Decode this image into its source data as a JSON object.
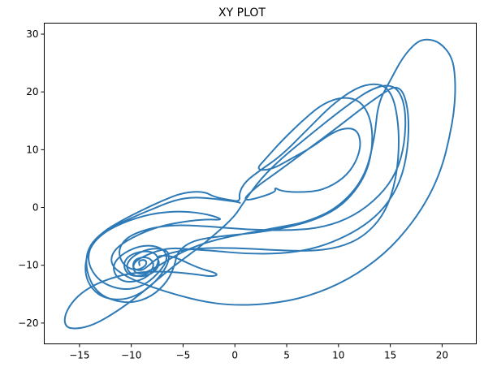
{
  "chart_data": {
    "type": "line",
    "title": "XY PLOT",
    "xlabel": "",
    "ylabel": "",
    "xlim": [
      -18.4,
      23.3
    ],
    "ylim": [
      -23.6,
      31.9
    ],
    "xticks": [
      -15,
      -10,
      -5,
      0,
      5,
      10,
      15,
      20
    ],
    "yticks": [
      -20,
      -10,
      0,
      10,
      20,
      30
    ],
    "grid": false,
    "color": "#2e7ab6",
    "series": [
      {
        "points": [
          [
            0.5,
            0.8
          ],
          [
            0.2,
            1.0
          ],
          [
            -0.8,
            1.2
          ],
          [
            -2.0,
            1.5
          ],
          [
            -4.0,
            1.8
          ],
          [
            -5.8,
            1.3
          ],
          [
            -8.0,
            -0.3
          ],
          [
            -10.0,
            -1.8
          ],
          [
            -12.0,
            -3.5
          ],
          [
            -13.5,
            -5.5
          ],
          [
            -14.2,
            -8.0
          ],
          [
            -14.0,
            -10.5
          ],
          [
            -13.0,
            -12.8
          ],
          [
            -11.5,
            -14.0
          ],
          [
            -10.0,
            -14.2
          ],
          [
            -8.5,
            -13.2
          ],
          [
            -7.2,
            -11.0
          ],
          [
            -6.5,
            -9.0
          ],
          [
            -6.8,
            -7.3
          ],
          [
            -8.0,
            -6.5
          ],
          [
            -9.5,
            -6.8
          ],
          [
            -11.0,
            -8.2
          ],
          [
            -11.8,
            -10.0
          ],
          [
            -11.5,
            -12.0
          ],
          [
            -10.5,
            -13.0
          ],
          [
            -9.0,
            -12.6
          ],
          [
            -7.8,
            -11.0
          ],
          [
            -7.3,
            -9.2
          ],
          [
            -7.7,
            -7.8
          ],
          [
            -8.8,
            -7.5
          ],
          [
            -10.2,
            -8.2
          ],
          [
            -10.8,
            -9.8
          ],
          [
            -10.4,
            -11.6
          ],
          [
            -9.2,
            -12.0
          ],
          [
            -8.0,
            -11.0
          ],
          [
            -7.8,
            -9.5
          ],
          [
            -8.5,
            -8.5
          ],
          [
            -9.7,
            -8.9
          ],
          [
            -9.9,
            -10.6
          ],
          [
            -9.0,
            -11.0
          ],
          [
            -8.3,
            -10.0
          ],
          [
            -7.5,
            -8.8
          ],
          [
            -6.5,
            -8.0
          ],
          [
            -5.0,
            -7.4
          ],
          [
            -3.0,
            -7.0
          ],
          [
            0.0,
            -7.0
          ],
          [
            3.0,
            -7.3
          ],
          [
            7.0,
            -7.6
          ],
          [
            10.0,
            -7.0
          ],
          [
            12.5,
            -5.0
          ],
          [
            14.5,
            -1.0
          ],
          [
            15.6,
            5.0
          ],
          [
            15.9,
            12.0
          ],
          [
            15.5,
            18.0
          ],
          [
            14.7,
            20.8
          ],
          [
            13.5,
            21.5
          ],
          [
            11.8,
            20.8
          ],
          [
            9.5,
            18.0
          ],
          [
            7.0,
            13.5
          ],
          [
            4.5,
            9.0
          ],
          [
            2.5,
            6.5
          ],
          [
            1.0,
            4.5
          ],
          [
            0.4,
            2.5
          ],
          [
            0.5,
            1.0
          ],
          [
            -0.5,
            1.3
          ],
          [
            -2.0,
            1.8
          ],
          [
            -3.0,
            2.8
          ],
          [
            -5.0,
            2.6
          ],
          [
            -7.0,
            1.2
          ],
          [
            -9.0,
            -0.5
          ],
          [
            -11.0,
            -2.3
          ],
          [
            -12.8,
            -4.3
          ],
          [
            -14.0,
            -6.5
          ],
          [
            -14.4,
            -9.0
          ],
          [
            -14.2,
            -11.8
          ],
          [
            -13.4,
            -14.5
          ],
          [
            -12.0,
            -16.0
          ],
          [
            -10.0,
            -16.6
          ],
          [
            -8.0,
            -15.4
          ],
          [
            -6.5,
            -12.8
          ],
          [
            -5.8,
            -10.0
          ],
          [
            -5.6,
            -8.0
          ],
          [
            -4.8,
            -6.5
          ],
          [
            -3.5,
            -5.5
          ],
          [
            -1.0,
            -4.9
          ],
          [
            2.0,
            -4.4
          ],
          [
            5.0,
            -3.5
          ],
          [
            8.0,
            -2.0
          ],
          [
            10.5,
            0.5
          ],
          [
            12.5,
            5.0
          ],
          [
            13.3,
            10.0
          ],
          [
            13.2,
            15.0
          ],
          [
            12.2,
            18.4
          ],
          [
            10.5,
            19.2
          ],
          [
            8.5,
            18.0
          ],
          [
            6.5,
            15.0
          ],
          [
            4.5,
            11.5
          ],
          [
            3.0,
            8.5
          ],
          [
            2.0,
            6.5
          ],
          [
            3.5,
            6.5
          ],
          [
            5.5,
            8.5
          ],
          [
            7.5,
            10.5
          ],
          [
            9.0,
            12.5
          ],
          [
            10.5,
            13.8
          ],
          [
            11.8,
            13.5
          ],
          [
            12.2,
            11.0
          ],
          [
            11.7,
            7.8
          ],
          [
            10.5,
            5.0
          ],
          [
            8.5,
            3.0
          ],
          [
            6.5,
            2.6
          ],
          [
            4.5,
            2.8
          ],
          [
            3.8,
            3.5
          ],
          [
            4.0,
            2.6
          ],
          [
            0.5,
            0.8
          ],
          [
            2.0,
            3.5
          ],
          [
            4.0,
            6.0
          ],
          [
            7.0,
            10.0
          ],
          [
            10.0,
            14.0
          ],
          [
            12.5,
            17.5
          ],
          [
            14.5,
            20.0
          ],
          [
            15.5,
            21.0
          ],
          [
            16.3,
            20.0
          ],
          [
            16.8,
            16.0
          ],
          [
            16.7,
            10.0
          ],
          [
            16.0,
            4.5
          ],
          [
            14.5,
            0.0
          ],
          [
            12.5,
            -3.2
          ],
          [
            10.0,
            -5.6
          ],
          [
            7.5,
            -7.2
          ],
          [
            4.5,
            -8.0
          ],
          [
            1.0,
            -8.0
          ],
          [
            -2.0,
            -7.5
          ],
          [
            -4.5,
            -7.2
          ],
          [
            -6.0,
            -7.0
          ],
          [
            -7.3,
            -7.4
          ],
          [
            -8.8,
            -8.4
          ],
          [
            -9.8,
            -9.6
          ],
          [
            -9.8,
            -11.0
          ],
          [
            -9.2,
            -11.6
          ],
          [
            -8.0,
            -10.8
          ],
          [
            -5.0,
            -7.5
          ],
          [
            -2.0,
            -5.6
          ],
          [
            1.0,
            -4.5
          ],
          [
            4.0,
            -3.5
          ],
          [
            7.0,
            -2.5
          ],
          [
            10.0,
            0.0
          ],
          [
            12.5,
            5.0
          ],
          [
            13.5,
            12.0
          ],
          [
            13.8,
            18.0
          ],
          [
            15.0,
            22.0
          ],
          [
            16.2,
            26.0
          ],
          [
            17.5,
            28.6
          ],
          [
            18.5,
            29.2
          ],
          [
            19.8,
            28.6
          ],
          [
            21.0,
            26.0
          ],
          [
            21.3,
            22.0
          ],
          [
            21.2,
            17.0
          ],
          [
            20.7,
            12.0
          ],
          [
            20.0,
            7.0
          ],
          [
            18.8,
            2.0
          ],
          [
            17.0,
            -3.0
          ],
          [
            14.5,
            -8.0
          ],
          [
            11.0,
            -12.5
          ],
          [
            7.0,
            -15.5
          ],
          [
            3.0,
            -16.8
          ],
          [
            -0.5,
            -16.9
          ],
          [
            -3.0,
            -16.3
          ],
          [
            -5.5,
            -15.2
          ],
          [
            -8.0,
            -13.8
          ],
          [
            -10.5,
            -12.0
          ],
          [
            -12.0,
            -10.0
          ],
          [
            -11.8,
            -7.5
          ],
          [
            -10.0,
            -5.2
          ],
          [
            -7.0,
            -3.0
          ],
          [
            -3.0,
            -2.0
          ],
          [
            -1.0,
            -2.2
          ],
          [
            -2.5,
            -1.2
          ],
          [
            -5.0,
            -0.6
          ],
          [
            -8.0,
            -1.0
          ],
          [
            -11.0,
            -2.7
          ],
          [
            -13.2,
            -5.0
          ],
          [
            -14.3,
            -8.0
          ],
          [
            -14.5,
            -11.5
          ],
          [
            -13.8,
            -14.2
          ],
          [
            -12.5,
            -15.8
          ],
          [
            -10.5,
            -16.0
          ],
          [
            -8.5,
            -14.3
          ],
          [
            -7.0,
            -11.5
          ],
          [
            -6.3,
            -9.0
          ],
          [
            -6.5,
            -7.3
          ],
          [
            -8.2,
            -7.0
          ],
          [
            -10.0,
            -8.5
          ],
          [
            -10.6,
            -10.5
          ],
          [
            -9.6,
            -12.1
          ],
          [
            -8.0,
            -11.6
          ],
          [
            -7.2,
            -9.8
          ],
          [
            -7.6,
            -8.4
          ],
          [
            -6.5,
            -8.3
          ],
          [
            -5.5,
            -8.8
          ],
          [
            -3.5,
            -10.5
          ],
          [
            -1.5,
            -11.5
          ],
          [
            -2.2,
            -12.0
          ],
          [
            -4.0,
            -11.5
          ],
          [
            -7.0,
            -11.0
          ],
          [
            -10.0,
            -11.3
          ],
          [
            -12.5,
            -12.5
          ],
          [
            -14.5,
            -14.3
          ],
          [
            -15.8,
            -16.5
          ],
          [
            -16.5,
            -19.0
          ],
          [
            -16.3,
            -20.8
          ],
          [
            -15.2,
            -21.0
          ],
          [
            -13.8,
            -20.4
          ],
          [
            -12.3,
            -19.0
          ],
          [
            -10.6,
            -17.0
          ],
          [
            -9.0,
            -14.8
          ],
          [
            -7.5,
            -12.5
          ],
          [
            -5.8,
            -10.0
          ],
          [
            -3.8,
            -7.4
          ],
          [
            -1.8,
            -4.5
          ],
          [
            0.0,
            -1.5
          ],
          [
            0.8,
            0.8
          ],
          [
            2.5,
            5.0
          ],
          [
            4.5,
            8.5
          ],
          [
            7.0,
            12.2
          ],
          [
            9.5,
            15.8
          ],
          [
            11.5,
            18.5
          ],
          [
            13.0,
            20.3
          ],
          [
            14.6,
            21.3
          ],
          [
            15.8,
            20.5
          ],
          [
            16.5,
            17.0
          ],
          [
            16.4,
            11.0
          ],
          [
            15.6,
            6.0
          ],
          [
            14.0,
            2.0
          ],
          [
            11.5,
            -1.5
          ],
          [
            8.5,
            -3.5
          ],
          [
            5.0,
            -4.0
          ],
          [
            1.0,
            -3.8
          ],
          [
            -3.0,
            -3.2
          ],
          [
            -6.0,
            -3.0
          ],
          [
            -8.5,
            -3.7
          ],
          [
            -10.5,
            -5.2
          ],
          [
            -11.3,
            -7.5
          ],
          [
            -10.8,
            -10.0
          ],
          [
            -9.5,
            -11.0
          ],
          [
            -8.5,
            -10.0
          ],
          [
            -8.6,
            -9.0
          ],
          [
            -9.3,
            -9.2
          ],
          [
            -9.2,
            -10.0
          ]
        ]
      }
    ]
  }
}
